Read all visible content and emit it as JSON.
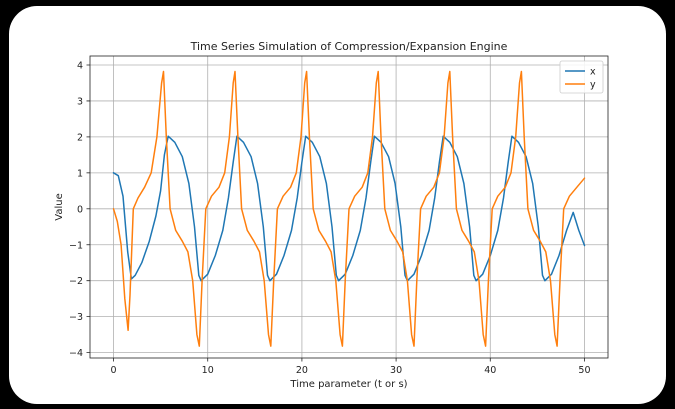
{
  "chart_data": {
    "type": "line",
    "title": "Time Series Simulation of Compression/Expansion Engine",
    "xlabel": "Time parameter (t or s)",
    "ylabel": "Value",
    "xlim": [
      -2.5,
      52.5
    ],
    "ylim": [
      -4.15,
      4.25
    ],
    "xticks": [
      0,
      10,
      20,
      30,
      40,
      50
    ],
    "yticks": [
      -4,
      -3,
      -2,
      -1,
      0,
      1,
      2,
      3,
      4
    ],
    "grid": true,
    "legend_position": "top-right",
    "series": [
      {
        "name": "x",
        "color": "#1f77b4",
        "points": [
          [
            0,
            1.0
          ],
          [
            0.5,
            0.92
          ],
          [
            1.0,
            0.35
          ],
          [
            1.5,
            -1.2
          ],
          [
            1.9,
            -1.95
          ],
          [
            2.3,
            -1.85
          ],
          [
            3.0,
            -1.5
          ],
          [
            3.8,
            -0.9
          ],
          [
            4.5,
            -0.2
          ],
          [
            5.0,
            0.5
          ],
          [
            5.4,
            1.5
          ],
          [
            5.8,
            2.02
          ],
          [
            6.5,
            1.85
          ],
          [
            7.3,
            1.45
          ],
          [
            8.0,
            0.7
          ],
          [
            8.6,
            -0.5
          ],
          [
            9.05,
            -1.85
          ],
          [
            9.3,
            -2.0
          ],
          [
            10.0,
            -1.82
          ],
          [
            10.8,
            -1.3
          ],
          [
            11.6,
            -0.6
          ],
          [
            12.2,
            0.3
          ],
          [
            12.7,
            1.3
          ],
          [
            13.1,
            2.02
          ],
          [
            13.8,
            1.85
          ],
          [
            14.6,
            1.45
          ],
          [
            15.3,
            0.7
          ],
          [
            15.9,
            -0.5
          ],
          [
            16.35,
            -1.85
          ],
          [
            16.6,
            -2.0
          ],
          [
            17.3,
            -1.82
          ],
          [
            18.1,
            -1.3
          ],
          [
            18.9,
            -0.6
          ],
          [
            19.5,
            0.3
          ],
          [
            20.0,
            1.3
          ],
          [
            20.4,
            2.02
          ],
          [
            21.1,
            1.85
          ],
          [
            21.9,
            1.45
          ],
          [
            22.6,
            0.7
          ],
          [
            23.2,
            -0.5
          ],
          [
            23.65,
            -1.85
          ],
          [
            23.9,
            -2.0
          ],
          [
            24.6,
            -1.82
          ],
          [
            25.4,
            -1.3
          ],
          [
            26.2,
            -0.6
          ],
          [
            26.8,
            0.3
          ],
          [
            27.3,
            1.3
          ],
          [
            27.7,
            2.02
          ],
          [
            28.4,
            1.85
          ],
          [
            29.2,
            1.45
          ],
          [
            29.9,
            0.7
          ],
          [
            30.5,
            -0.5
          ],
          [
            30.95,
            -1.85
          ],
          [
            31.2,
            -2.0
          ],
          [
            31.9,
            -1.82
          ],
          [
            32.7,
            -1.3
          ],
          [
            33.5,
            -0.6
          ],
          [
            34.1,
            0.3
          ],
          [
            34.6,
            1.3
          ],
          [
            35.0,
            2.02
          ],
          [
            35.7,
            1.85
          ],
          [
            36.5,
            1.45
          ],
          [
            37.2,
            0.7
          ],
          [
            37.8,
            -0.5
          ],
          [
            38.25,
            -1.85
          ],
          [
            38.5,
            -2.0
          ],
          [
            39.2,
            -1.82
          ],
          [
            40.0,
            -1.3
          ],
          [
            40.8,
            -0.6
          ],
          [
            41.4,
            0.3
          ],
          [
            41.9,
            1.3
          ],
          [
            42.3,
            2.02
          ],
          [
            43.0,
            1.85
          ],
          [
            43.8,
            1.45
          ],
          [
            44.5,
            0.7
          ],
          [
            45.1,
            -0.5
          ],
          [
            45.55,
            -1.85
          ],
          [
            45.8,
            -2.0
          ],
          [
            46.5,
            -1.82
          ],
          [
            47.3,
            -1.3
          ],
          [
            48.1,
            -0.6
          ],
          [
            48.8,
            -0.1
          ],
          [
            49.4,
            -0.6
          ],
          [
            50,
            -1.02
          ]
        ]
      },
      {
        "name": "y",
        "color": "#ff7f0e",
        "points": [
          [
            0,
            0.0
          ],
          [
            0.4,
            -0.35
          ],
          [
            0.8,
            -1.0
          ],
          [
            1.2,
            -2.5
          ],
          [
            1.55,
            -3.38
          ],
          [
            1.75,
            -2.4
          ],
          [
            2.1,
            0.0
          ],
          [
            2.6,
            0.3
          ],
          [
            3.3,
            0.6
          ],
          [
            4.0,
            1.0
          ],
          [
            4.6,
            2.0
          ],
          [
            5.1,
            3.5
          ],
          [
            5.3,
            3.82
          ],
          [
            5.6,
            2.0
          ],
          [
            6.0,
            0.0
          ],
          [
            6.6,
            -0.6
          ],
          [
            7.3,
            -0.9
          ],
          [
            7.9,
            -1.2
          ],
          [
            8.4,
            -2.0
          ],
          [
            8.85,
            -3.5
          ],
          [
            9.1,
            -3.82
          ],
          [
            9.4,
            -2.0
          ],
          [
            9.8,
            0.0
          ],
          [
            10.4,
            0.35
          ],
          [
            11.2,
            0.6
          ],
          [
            11.8,
            1.0
          ],
          [
            12.3,
            2.0
          ],
          [
            12.7,
            3.5
          ],
          [
            12.9,
            3.82
          ],
          [
            13.2,
            2.0
          ],
          [
            13.6,
            0.0
          ],
          [
            14.2,
            -0.6
          ],
          [
            14.9,
            -0.9
          ],
          [
            15.5,
            -1.2
          ],
          [
            16.0,
            -2.0
          ],
          [
            16.45,
            -3.5
          ],
          [
            16.7,
            -3.82
          ],
          [
            17.0,
            -2.0
          ],
          [
            17.4,
            0.0
          ],
          [
            18.0,
            0.35
          ],
          [
            18.8,
            0.6
          ],
          [
            19.4,
            1.0
          ],
          [
            19.9,
            2.0
          ],
          [
            20.3,
            3.5
          ],
          [
            20.5,
            3.82
          ],
          [
            20.8,
            2.0
          ],
          [
            21.2,
            0.0
          ],
          [
            21.8,
            -0.6
          ],
          [
            22.5,
            -0.9
          ],
          [
            23.1,
            -1.2
          ],
          [
            23.6,
            -2.0
          ],
          [
            24.05,
            -3.5
          ],
          [
            24.3,
            -3.82
          ],
          [
            24.6,
            -2.0
          ],
          [
            25.0,
            0.0
          ],
          [
            25.6,
            0.35
          ],
          [
            26.4,
            0.6
          ],
          [
            27.0,
            1.0
          ],
          [
            27.5,
            2.0
          ],
          [
            27.9,
            3.5
          ],
          [
            28.1,
            3.82
          ],
          [
            28.4,
            2.0
          ],
          [
            28.8,
            0.0
          ],
          [
            29.4,
            -0.6
          ],
          [
            30.1,
            -0.9
          ],
          [
            30.7,
            -1.2
          ],
          [
            31.2,
            -2.0
          ],
          [
            31.65,
            -3.5
          ],
          [
            31.9,
            -3.82
          ],
          [
            32.2,
            -2.0
          ],
          [
            32.6,
            0.0
          ],
          [
            33.2,
            0.35
          ],
          [
            34.0,
            0.6
          ],
          [
            34.6,
            1.0
          ],
          [
            35.1,
            2.0
          ],
          [
            35.5,
            3.5
          ],
          [
            35.7,
            3.82
          ],
          [
            36.0,
            2.0
          ],
          [
            36.4,
            0.0
          ],
          [
            37.0,
            -0.6
          ],
          [
            37.7,
            -0.9
          ],
          [
            38.3,
            -1.2
          ],
          [
            38.8,
            -2.0
          ],
          [
            39.25,
            -3.5
          ],
          [
            39.5,
            -3.82
          ],
          [
            39.8,
            -2.0
          ],
          [
            40.2,
            0.0
          ],
          [
            40.8,
            0.35
          ],
          [
            41.6,
            0.6
          ],
          [
            42.2,
            1.0
          ],
          [
            42.7,
            2.0
          ],
          [
            43.1,
            3.5
          ],
          [
            43.3,
            3.82
          ],
          [
            43.6,
            2.0
          ],
          [
            44.0,
            0.0
          ],
          [
            44.6,
            -0.6
          ],
          [
            45.3,
            -0.9
          ],
          [
            45.9,
            -1.2
          ],
          [
            46.4,
            -2.0
          ],
          [
            46.85,
            -3.5
          ],
          [
            47.1,
            -3.82
          ],
          [
            47.4,
            -2.0
          ],
          [
            47.8,
            0.0
          ],
          [
            48.4,
            0.35
          ],
          [
            49.2,
            0.6
          ],
          [
            50,
            0.85
          ]
        ]
      }
    ]
  }
}
